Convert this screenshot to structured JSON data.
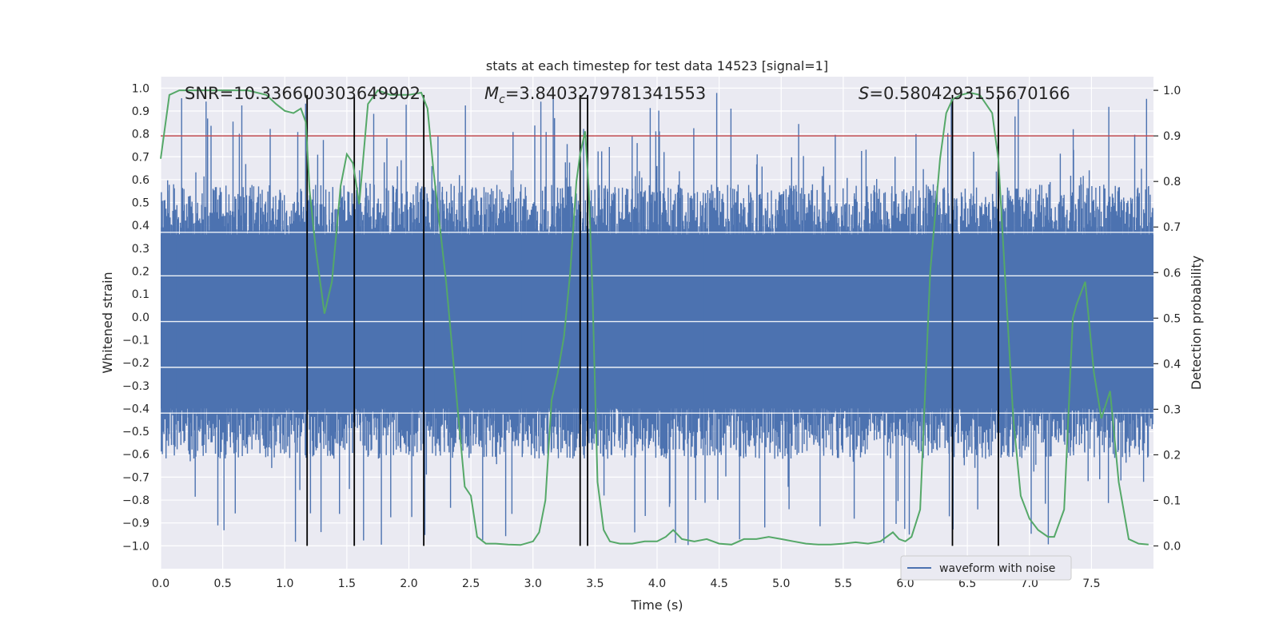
{
  "chart_data": {
    "type": "line",
    "title": "stats at each timestep for test data 14523 [signal=1]",
    "xlabel": "Time (s)",
    "ylabel": "Whitened strain",
    "y2label": "Detection probability",
    "xlim": [
      0,
      8
    ],
    "ylim": [
      -1.1,
      1.05
    ],
    "y2lim": [
      -0.05,
      1.03
    ],
    "xticks": [
      "0.0",
      "0.5",
      "1.0",
      "1.5",
      "2.0",
      "2.5",
      "3.0",
      "3.5",
      "4.0",
      "4.5",
      "5.0",
      "5.5",
      "6.0",
      "6.5",
      "7.0",
      "7.5"
    ],
    "xtick_values": [
      0,
      0.5,
      1,
      1.5,
      2,
      2.5,
      3,
      3.5,
      4,
      4.5,
      5,
      5.5,
      6,
      6.5,
      7,
      7.5
    ],
    "yticks": [
      "1.0",
      "0.9",
      "0.8",
      "0.7",
      "0.6",
      "0.5",
      "0.4",
      "0.3",
      "0.2",
      "0.1",
      "0.0",
      "−0.1",
      "−0.2",
      "−0.3",
      "−0.4",
      "−0.5",
      "−0.6",
      "−0.7",
      "−0.8",
      "−0.9",
      "−1.0"
    ],
    "ytick_values": [
      1.0,
      0.9,
      0.8,
      0.7,
      0.6,
      0.5,
      0.4,
      0.3,
      0.2,
      0.1,
      0.0,
      -0.1,
      -0.2,
      -0.3,
      -0.4,
      -0.5,
      -0.6,
      -0.7,
      -0.8,
      -0.9,
      -1.0
    ],
    "y2ticks": [
      "1.0",
      "0.9",
      "0.8",
      "0.7",
      "0.6",
      "0.5",
      "0.4",
      "0.3",
      "0.2",
      "0.1",
      "0.0"
    ],
    "y2tick_values": [
      1.0,
      0.9,
      0.8,
      0.7,
      0.6,
      0.5,
      0.4,
      0.3,
      0.2,
      0.1,
      0.0
    ],
    "grid": true,
    "legend_position": "lower-right",
    "annotations": {
      "snr": "SNR=10.336600303649902",
      "mc_symbol": "M",
      "mc_sub": "c",
      "mc_value": "=3.8403279781341553",
      "s_symbol": "S",
      "s_value": "=0.5804293155670166"
    },
    "threshold": {
      "value": 0.9,
      "axis": "right",
      "color": "#c44e52"
    },
    "vertical_lines": [
      1.18,
      1.56,
      2.12,
      3.38,
      3.44,
      6.38,
      6.75
    ],
    "vertical_line_range": [
      -1.0,
      0.97
    ],
    "series": [
      {
        "name": "waveform with noise",
        "color": "#4c72b0",
        "axis": "left",
        "note_type": "noise",
        "envelope_upper": 0.36,
        "envelope_lower": -0.4,
        "spike_max": 0.98,
        "spike_min": -1.0
      },
      {
        "color": "#55a868",
        "axis": "right",
        "x": [
          0.0,
          0.07,
          0.15,
          0.3,
          0.5,
          0.7,
          0.85,
          0.93,
          1.0,
          1.07,
          1.13,
          1.17,
          1.2,
          1.25,
          1.32,
          1.38,
          1.45,
          1.5,
          1.55,
          1.6,
          1.67,
          1.75,
          1.85,
          2.0,
          2.1,
          2.15,
          2.2,
          2.3,
          2.4,
          2.45,
          2.5,
          2.55,
          2.62,
          2.7,
          2.8,
          2.9,
          3.0,
          3.05,
          3.1,
          3.15,
          3.2,
          3.25,
          3.3,
          3.35,
          3.38,
          3.42,
          3.45,
          3.48,
          3.52,
          3.57,
          3.62,
          3.7,
          3.8,
          3.9,
          4.0,
          4.07,
          4.13,
          4.2,
          4.3,
          4.4,
          4.5,
          4.6,
          4.7,
          4.8,
          4.9,
          5.0,
          5.1,
          5.2,
          5.3,
          5.4,
          5.5,
          5.6,
          5.7,
          5.8,
          5.9,
          5.95,
          6.0,
          6.05,
          6.12,
          6.2,
          6.28,
          6.33,
          6.38,
          6.45,
          6.52,
          6.6,
          6.7,
          6.75,
          6.8,
          6.87,
          6.93,
          7.0,
          7.07,
          7.15,
          7.2,
          7.28,
          7.35,
          7.38,
          7.45,
          7.52,
          7.58,
          7.65,
          7.72,
          7.8,
          7.88,
          7.96
        ],
        "y": [
          0.85,
          0.99,
          1.0,
          1.0,
          1.0,
          1.0,
          0.99,
          0.97,
          0.955,
          0.95,
          0.96,
          0.93,
          0.78,
          0.65,
          0.51,
          0.58,
          0.79,
          0.86,
          0.84,
          0.75,
          0.97,
          1.0,
          0.99,
          0.99,
          0.995,
          0.96,
          0.82,
          0.58,
          0.28,
          0.13,
          0.11,
          0.02,
          0.005,
          0.005,
          0.003,
          0.002,
          0.01,
          0.03,
          0.1,
          0.32,
          0.38,
          0.46,
          0.6,
          0.8,
          0.86,
          0.91,
          0.78,
          0.55,
          0.14,
          0.035,
          0.01,
          0.005,
          0.005,
          0.01,
          0.01,
          0.02,
          0.035,
          0.015,
          0.01,
          0.015,
          0.005,
          0.003,
          0.015,
          0.015,
          0.02,
          0.015,
          0.01,
          0.005,
          0.003,
          0.003,
          0.005,
          0.008,
          0.005,
          0.01,
          0.03,
          0.015,
          0.01,
          0.02,
          0.08,
          0.6,
          0.85,
          0.95,
          0.98,
          0.99,
          0.995,
          0.99,
          0.95,
          0.85,
          0.61,
          0.28,
          0.11,
          0.06,
          0.035,
          0.02,
          0.02,
          0.08,
          0.5,
          0.53,
          0.58,
          0.38,
          0.28,
          0.34,
          0.14,
          0.015,
          0.005,
          0.003
        ]
      }
    ]
  }
}
